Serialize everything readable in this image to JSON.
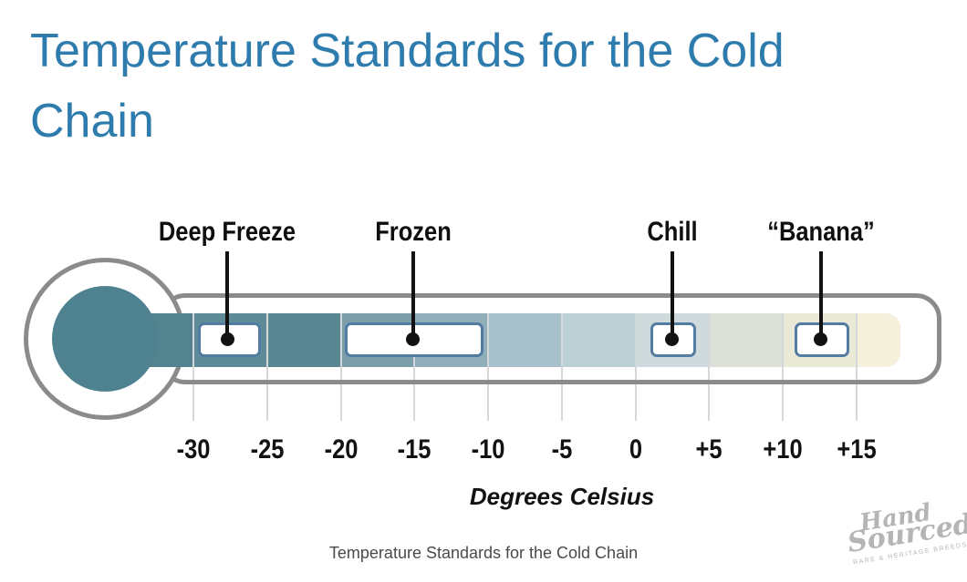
{
  "slide": {
    "title": "Temperature Standards for the Cold Chain",
    "title_color": "#2E7CAD",
    "caption": "Temperature Standards for the Cold Chain"
  },
  "diagram": {
    "type": "thermometer-temperature-scale",
    "axis_label": "Degrees Celsius",
    "unit": "°C",
    "scale_min": -30,
    "scale_max": 15,
    "ticks": [
      {
        "value": -30,
        "label": "-30"
      },
      {
        "value": -25,
        "label": "-25"
      },
      {
        "value": -20,
        "label": "-20"
      },
      {
        "value": -15,
        "label": "-15"
      },
      {
        "value": -10,
        "label": "-10"
      },
      {
        "value": -5,
        "label": "-5"
      },
      {
        "value": 0,
        "label": "0"
      },
      {
        "value": 5,
        "label": "+5"
      },
      {
        "value": 10,
        "label": "+10"
      },
      {
        "value": 15,
        "label": "+15"
      }
    ],
    "zones": [
      {
        "label": "Deep Freeze",
        "from_c": -29.7,
        "to_c": -25.4,
        "pointer_c": -27.7
      },
      {
        "label": "Frozen",
        "from_c": -19.7,
        "to_c": -10.3,
        "pointer_c": -15.1
      },
      {
        "label": "Chill",
        "from_c": 1.0,
        "to_c": 4.1,
        "pointer_c": 2.5
      },
      {
        "label": "“Banana”",
        "from_c": 10.8,
        "to_c": 14.5,
        "pointer_c": 12.6
      }
    ],
    "fluid_segments": [
      {
        "from_c": -36,
        "to_c": -30,
        "color": "#548390"
      },
      {
        "from_c": -30,
        "to_c": -25,
        "color": "#5F8B98"
      },
      {
        "from_c": -25,
        "to_c": -20,
        "color": "#5A8792"
      },
      {
        "from_c": -20,
        "to_c": -15,
        "color": "#7B9EAA"
      },
      {
        "from_c": -15,
        "to_c": -10,
        "color": "#90AFBA"
      },
      {
        "from_c": -10,
        "to_c": -5,
        "color": "#A8C1CB"
      },
      {
        "from_c": -5,
        "to_c": 0,
        "color": "#BDD0D6"
      },
      {
        "from_c": 0,
        "to_c": 5,
        "color": "#CEDADB"
      },
      {
        "from_c": 5,
        "to_c": 10,
        "color": "#DBE1D7"
      },
      {
        "from_c": 10,
        "to_c": 15,
        "color": "#EAE8D7"
      },
      {
        "from_c": 15,
        "to_c": 18,
        "color": "#F5F0DB"
      }
    ],
    "colors": {
      "bulb": "#4F8290",
      "outline": "#8B8B8B",
      "zone_border": "#537CA3",
      "pointer": "#121212",
      "tick_line": "#D7D7D7"
    }
  },
  "logo": {
    "word1": "Hand",
    "word2": "Sourced",
    "tagline": "RARE & HERITAGE BREEDS"
  }
}
